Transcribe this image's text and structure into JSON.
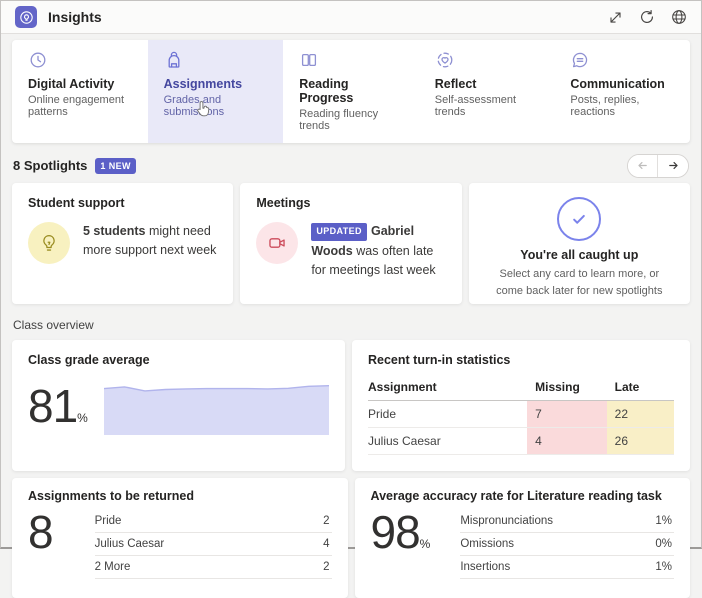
{
  "header": {
    "title": "Insights",
    "app_icon": "insights-lightbulb-icon",
    "actions": [
      "expand-icon",
      "refresh-icon",
      "globe-icon"
    ]
  },
  "tabs": [
    {
      "label": "Digital Activity",
      "sublabel": "Online engagement patterns",
      "icon": "clock-icon",
      "selected": false
    },
    {
      "label": "Assignments",
      "sublabel": "Grades and submissions",
      "icon": "backpack-icon",
      "selected": true
    },
    {
      "label": "Reading Progress",
      "sublabel": "Reading fluency trends",
      "icon": "open-book-icon",
      "selected": false
    },
    {
      "label": "Reflect",
      "sublabel": "Self-assessment trends",
      "icon": "heart-circle-icon",
      "selected": false
    },
    {
      "label": "Communication",
      "sublabel": "Posts, replies, reactions",
      "icon": "chat-bubble-icon",
      "selected": false
    }
  ],
  "spotlights": {
    "title": "8 Spotlights",
    "badge": "1 NEW",
    "cards": [
      {
        "title": "Student support",
        "icon": "lightbulb-icon",
        "text_bold": "5 students",
        "text_rest": " might need more support next week"
      },
      {
        "title": "Meetings",
        "icon": "video-camera-icon",
        "badge": "UPDATED",
        "text_bold": "Gabriel Woods",
        "text_rest": " was often late for meetings last week"
      },
      {
        "title": "You're all caught up",
        "icon": "checkmark-circle-icon",
        "subtitle": "Select any card to learn more, or come back later for new spotlights"
      }
    ]
  },
  "class_overview": {
    "section_label": "Class overview",
    "grade_card": {
      "title": "Class grade average",
      "value": "81",
      "unit": "%"
    },
    "turnin_card": {
      "title": "Recent turn-in statistics",
      "columns": [
        "Assignment",
        "Missing",
        "Late"
      ],
      "rows": [
        {
          "name": "Pride",
          "missing": "7",
          "late": "22"
        },
        {
          "name": "Julius Caesar",
          "missing": "4",
          "late": "26"
        }
      ]
    },
    "returns_card": {
      "title": "Assignments to be returned",
      "value": "8",
      "rows": [
        {
          "name": "Pride",
          "value": "2"
        },
        {
          "name": "Julius Caesar",
          "value": "4"
        },
        {
          "name": "2 More",
          "value": "2"
        }
      ]
    },
    "accuracy_card": {
      "title": "Average accuracy rate for Literature reading task",
      "value": "98",
      "unit": "%",
      "rows": [
        {
          "name": "Mispronunciations",
          "value": "1%"
        },
        {
          "name": "Omissions",
          "value": "0%"
        },
        {
          "name": "Insertions",
          "value": "1%"
        }
      ]
    }
  },
  "chart_data": {
    "type": "area",
    "title": "Class grade average trend",
    "values": [
      80,
      83,
      76,
      78.5,
      79.5,
      80,
      80,
      80,
      79.5,
      80.5,
      84,
      85
    ],
    "ylim": [
      0,
      100
    ],
    "fill_color": "#d8daf6",
    "line_color": "#b1b4ec",
    "grid": false,
    "axes_visible": false
  },
  "colors": {
    "brand_purple": "#6264a7",
    "badge_purple": "#5b5fc7",
    "selected_tab_bg": "#e9e9f8",
    "missing_cell_bg": "#fadadb",
    "late_cell_bg": "#f9efc7",
    "spot_yellow_bg": "#f8f1c0",
    "spot_pink_bg": "#fce5e8",
    "caught_up_purple": "#7b83eb"
  }
}
